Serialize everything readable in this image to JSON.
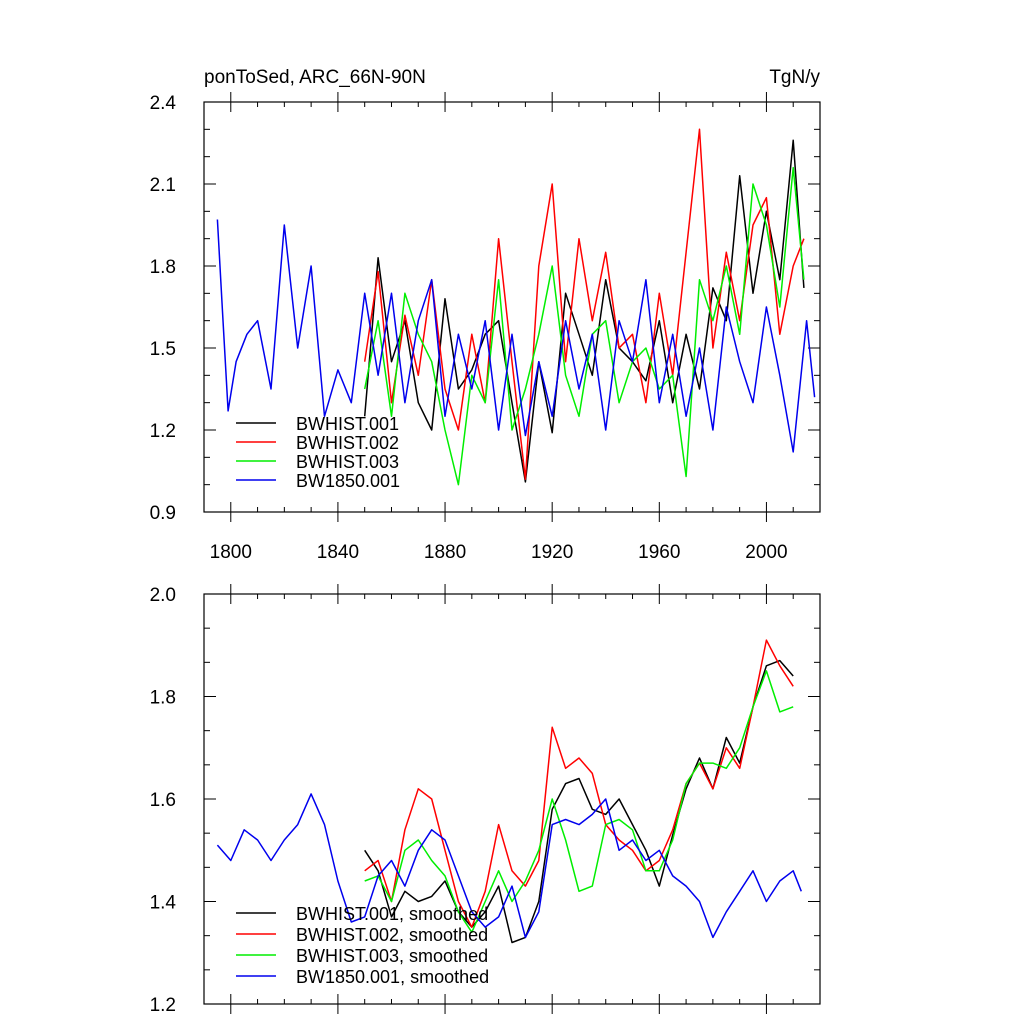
{
  "chart_data": [
    {
      "type": "line",
      "title": "ponToSed, ARC_66N-90N",
      "units": "TgN/y",
      "xlim": [
        1790,
        2020
      ],
      "ylim": [
        0.9,
        2.4
      ],
      "xticks": [
        1800,
        1840,
        1880,
        1920,
        1960,
        2000
      ],
      "xtick_labels": [
        "1800",
        "1840",
        "1880",
        "1920",
        "1960",
        "2000"
      ],
      "yticks": [
        0.9,
        1.2,
        1.5,
        1.8,
        2.1,
        2.4
      ],
      "ytick_labels": [
        "0.9",
        "1.2",
        "1.5",
        "1.8",
        "2.1",
        "2.4"
      ],
      "legend_position": "bottom-left",
      "series": [
        {
          "name": "BWHIST.001",
          "color": "#000000",
          "x": [
            1850,
            1855,
            1860,
            1865,
            1870,
            1875,
            1880,
            1885,
            1890,
            1895,
            1900,
            1905,
            1910,
            1915,
            1920,
            1925,
            1930,
            1935,
            1940,
            1945,
            1950,
            1955,
            1960,
            1965,
            1970,
            1975,
            1980,
            1985,
            1990,
            1995,
            2000,
            2005,
            2010,
            2014
          ],
          "values": [
            1.25,
            1.83,
            1.45,
            1.6,
            1.3,
            1.2,
            1.68,
            1.35,
            1.42,
            1.55,
            1.6,
            1.3,
            1.01,
            1.45,
            1.19,
            1.7,
            1.55,
            1.4,
            1.75,
            1.5,
            1.45,
            1.38,
            1.6,
            1.3,
            1.55,
            1.35,
            1.72,
            1.6,
            2.13,
            1.7,
            2.0,
            1.75,
            2.26,
            1.72
          ]
        },
        {
          "name": "BWHIST.002",
          "color": "#ff0000",
          "x": [
            1850,
            1855,
            1860,
            1865,
            1870,
            1875,
            1880,
            1885,
            1890,
            1895,
            1900,
            1905,
            1910,
            1915,
            1920,
            1925,
            1930,
            1935,
            1940,
            1945,
            1950,
            1955,
            1960,
            1965,
            1970,
            1975,
            1980,
            1985,
            1990,
            1995,
            2000,
            2005,
            2010,
            2014
          ],
          "values": [
            1.45,
            1.78,
            1.3,
            1.62,
            1.4,
            1.75,
            1.35,
            1.2,
            1.55,
            1.3,
            1.9,
            1.45,
            1.02,
            1.8,
            2.1,
            1.45,
            1.9,
            1.6,
            1.85,
            1.5,
            1.55,
            1.3,
            1.7,
            1.4,
            1.85,
            2.3,
            1.5,
            1.85,
            1.6,
            1.95,
            2.05,
            1.55,
            1.8,
            1.9
          ]
        },
        {
          "name": "BWHIST.003",
          "color": "#00ee00",
          "x": [
            1850,
            1855,
            1860,
            1865,
            1870,
            1875,
            1880,
            1885,
            1890,
            1895,
            1900,
            1905,
            1910,
            1915,
            1920,
            1925,
            1930,
            1935,
            1940,
            1945,
            1950,
            1955,
            1960,
            1965,
            1970,
            1975,
            1980,
            1985,
            1990,
            1995,
            2000,
            2005,
            2010,
            2014
          ],
          "values": [
            1.35,
            1.6,
            1.25,
            1.7,
            1.55,
            1.45,
            1.2,
            1.0,
            1.4,
            1.3,
            1.75,
            1.2,
            1.35,
            1.55,
            1.8,
            1.4,
            1.25,
            1.55,
            1.6,
            1.3,
            1.45,
            1.5,
            1.35,
            1.4,
            1.03,
            1.75,
            1.6,
            1.8,
            1.55,
            2.1,
            1.95,
            1.65,
            2.16,
            1.75
          ]
        },
        {
          "name": "BW1850.001",
          "color": "#0000ee",
          "x": [
            1795,
            1797,
            1799,
            1802,
            1806,
            1810,
            1815,
            1820,
            1825,
            1830,
            1835,
            1840,
            1845,
            1850,
            1855,
            1860,
            1865,
            1870,
            1875,
            1880,
            1885,
            1890,
            1895,
            1900,
            1905,
            1910,
            1915,
            1920,
            1925,
            1930,
            1935,
            1940,
            1945,
            1950,
            1955,
            1960,
            1965,
            1970,
            1975,
            1980,
            1985,
            1990,
            1995,
            2000,
            2005,
            2010,
            2015,
            2018
          ],
          "values": [
            1.97,
            1.62,
            1.27,
            1.45,
            1.55,
            1.6,
            1.35,
            1.95,
            1.5,
            1.8,
            1.25,
            1.42,
            1.3,
            1.7,
            1.4,
            1.7,
            1.3,
            1.6,
            1.75,
            1.25,
            1.55,
            1.35,
            1.6,
            1.2,
            1.55,
            1.18,
            1.45,
            1.25,
            1.6,
            1.35,
            1.55,
            1.2,
            1.6,
            1.45,
            1.75,
            1.3,
            1.55,
            1.25,
            1.5,
            1.2,
            1.65,
            1.45,
            1.3,
            1.65,
            1.4,
            1.12,
            1.6,
            1.32
          ]
        }
      ]
    },
    {
      "type": "line",
      "title": "",
      "units": "",
      "xlim": [
        1790,
        2020
      ],
      "ylim": [
        1.2,
        2.0
      ],
      "xticks": [
        1800,
        1840,
        1880,
        1920,
        1960,
        2000
      ],
      "yticks": [
        1.2,
        1.4,
        1.6,
        1.8,
        2.0
      ],
      "ytick_labels": [
        "1.2",
        "1.4",
        "1.6",
        "1.8",
        "2.0"
      ],
      "legend_position": "bottom-left",
      "series": [
        {
          "name": "BWHIST.001, smoothed",
          "color": "#000000",
          "x": [
            1850,
            1855,
            1860,
            1865,
            1870,
            1875,
            1880,
            1885,
            1890,
            1895,
            1900,
            1905,
            1910,
            1915,
            1920,
            1925,
            1930,
            1935,
            1940,
            1945,
            1950,
            1955,
            1960,
            1965,
            1970,
            1975,
            1980,
            1985,
            1990,
            1995,
            2000,
            2005,
            2010
          ],
          "values": [
            1.5,
            1.46,
            1.37,
            1.42,
            1.4,
            1.41,
            1.44,
            1.38,
            1.35,
            1.38,
            1.43,
            1.32,
            1.33,
            1.4,
            1.58,
            1.63,
            1.64,
            1.58,
            1.57,
            1.6,
            1.55,
            1.5,
            1.43,
            1.53,
            1.62,
            1.68,
            1.62,
            1.72,
            1.67,
            1.78,
            1.86,
            1.87,
            1.84
          ]
        },
        {
          "name": "BWHIST.002, smoothed",
          "color": "#ff0000",
          "x": [
            1850,
            1855,
            1860,
            1865,
            1870,
            1875,
            1880,
            1885,
            1890,
            1895,
            1900,
            1905,
            1910,
            1915,
            1920,
            1925,
            1930,
            1935,
            1940,
            1945,
            1950,
            1955,
            1960,
            1965,
            1970,
            1975,
            1980,
            1985,
            1990,
            1995,
            2000,
            2005,
            2010
          ],
          "values": [
            1.46,
            1.48,
            1.4,
            1.54,
            1.62,
            1.6,
            1.5,
            1.4,
            1.35,
            1.42,
            1.55,
            1.46,
            1.43,
            1.48,
            1.74,
            1.66,
            1.68,
            1.65,
            1.55,
            1.52,
            1.5,
            1.46,
            1.48,
            1.54,
            1.63,
            1.67,
            1.62,
            1.7,
            1.66,
            1.78,
            1.91,
            1.86,
            1.82
          ]
        },
        {
          "name": "BWHIST.003, smoothed",
          "color": "#00ee00",
          "x": [
            1850,
            1855,
            1860,
            1865,
            1870,
            1875,
            1880,
            1885,
            1890,
            1895,
            1900,
            1905,
            1910,
            1915,
            1920,
            1925,
            1930,
            1935,
            1940,
            1945,
            1950,
            1955,
            1960,
            1965,
            1970,
            1975,
            1980,
            1985,
            1990,
            1995,
            2000,
            2005,
            2010
          ],
          "values": [
            1.44,
            1.45,
            1.4,
            1.5,
            1.52,
            1.48,
            1.45,
            1.38,
            1.34,
            1.4,
            1.46,
            1.4,
            1.44,
            1.5,
            1.6,
            1.52,
            1.42,
            1.43,
            1.55,
            1.56,
            1.54,
            1.46,
            1.46,
            1.52,
            1.63,
            1.67,
            1.67,
            1.66,
            1.7,
            1.78,
            1.85,
            1.77,
            1.78
          ]
        },
        {
          "name": "BW1850.001, smoothed",
          "color": "#0000ee",
          "x": [
            1795,
            1800,
            1805,
            1810,
            1815,
            1820,
            1825,
            1830,
            1835,
            1840,
            1845,
            1850,
            1855,
            1860,
            1865,
            1870,
            1875,
            1880,
            1885,
            1890,
            1895,
            1900,
            1905,
            1910,
            1915,
            1920,
            1925,
            1930,
            1935,
            1940,
            1945,
            1950,
            1955,
            1960,
            1965,
            1970,
            1975,
            1980,
            1985,
            1990,
            1995,
            2000,
            2005,
            2010,
            2013
          ],
          "values": [
            1.51,
            1.48,
            1.54,
            1.52,
            1.48,
            1.52,
            1.55,
            1.61,
            1.55,
            1.44,
            1.36,
            1.37,
            1.45,
            1.48,
            1.43,
            1.5,
            1.54,
            1.52,
            1.45,
            1.38,
            1.35,
            1.37,
            1.43,
            1.33,
            1.38,
            1.55,
            1.56,
            1.55,
            1.57,
            1.6,
            1.5,
            1.52,
            1.48,
            1.5,
            1.45,
            1.43,
            1.4,
            1.33,
            1.38,
            1.42,
            1.46,
            1.4,
            1.44,
            1.46,
            1.42
          ]
        }
      ]
    }
  ]
}
